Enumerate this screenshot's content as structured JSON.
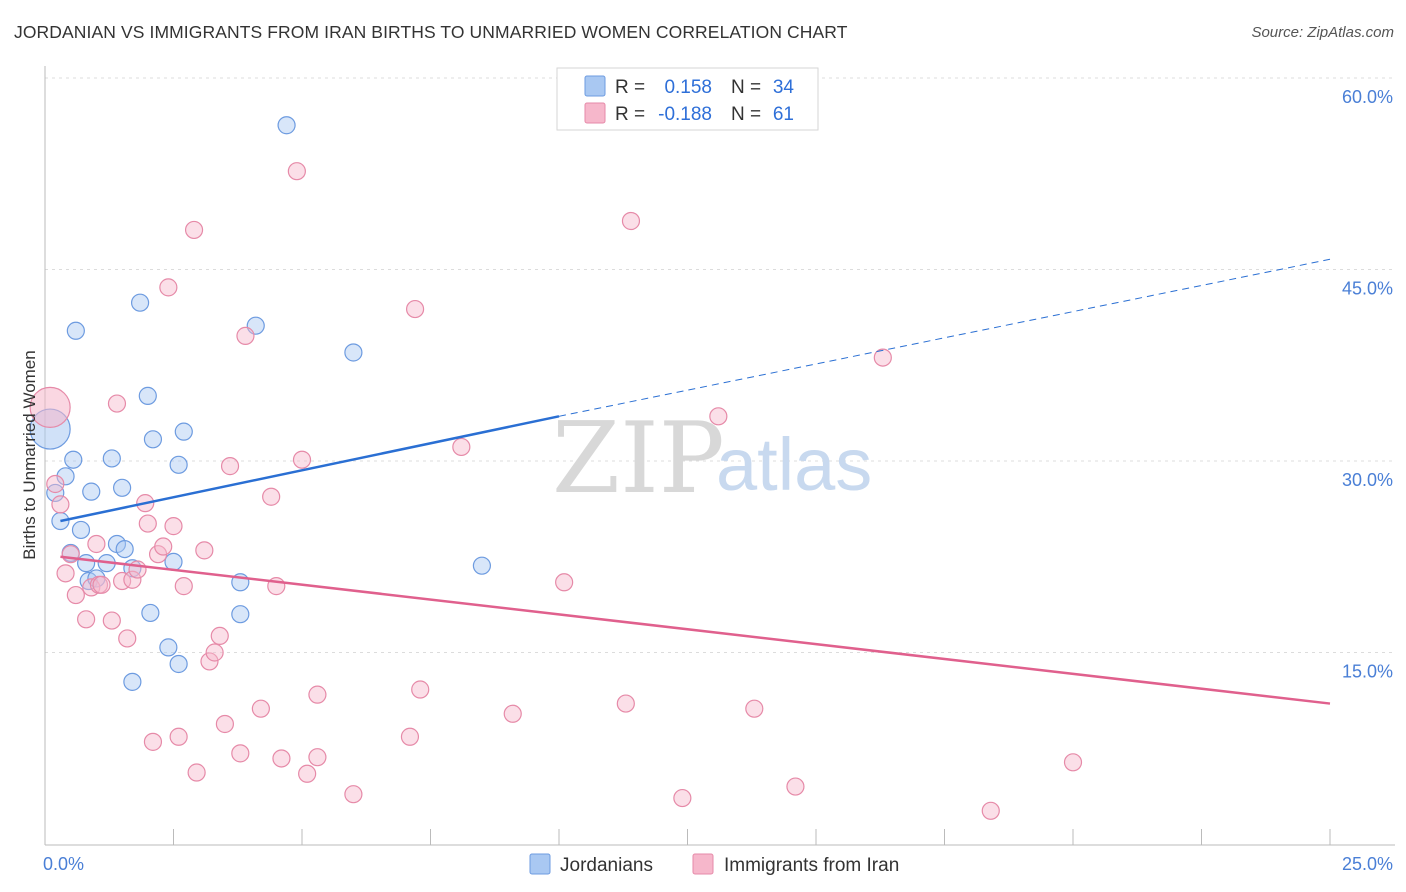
{
  "header": {
    "title": "JORDANIAN VS IMMIGRANTS FROM IRAN BIRTHS TO UNMARRIED WOMEN CORRELATION CHART",
    "source": "Source: ZipAtlas.com"
  },
  "watermark": {
    "zip": "ZIP",
    "atlas": "atlas"
  },
  "legend_top": {
    "rows": [
      {
        "r_label": "R =",
        "r_value": "0.158",
        "n_label": "N =",
        "n_value": "34",
        "color": "#a9c8f2"
      },
      {
        "r_label": "R =",
        "r_value": "-0.188",
        "n_label": "N =",
        "n_value": "61",
        "color": "#f6b7cb"
      }
    ]
  },
  "legend_bottom": {
    "items": [
      {
        "label": "Jordanians",
        "color": "#a9c8f2"
      },
      {
        "label": "Immigrants from Iran",
        "color": "#f6b7cb"
      }
    ]
  },
  "chart_data": {
    "type": "scatter",
    "title": "JORDANIAN VS IMMIGRANTS FROM IRAN BIRTHS TO UNMARRIED WOMEN CORRELATION CHART",
    "xlabel": "",
    "ylabel": "Births to Unmarried Women",
    "xlim": [
      0,
      25
    ],
    "ylim": [
      0,
      60
    ],
    "x_tick_labels": [
      "0.0%",
      "25.0%"
    ],
    "y_ticks": [
      15,
      30,
      45,
      60
    ],
    "y_tick_labels": [
      "15.0%",
      "30.0%",
      "45.0%",
      "60.0%"
    ],
    "grid": true,
    "legend_position": "top-center",
    "series": [
      {
        "name": "Jordanians",
        "color": "#a9c8f2",
        "stroke": "#6d9be0",
        "trend": {
          "x0": 0.3,
          "y0": 25.3,
          "x1": 10,
          "y1": 33.5,
          "dash_to_x": 25,
          "dash_to_y": 45.8,
          "color": "#2a6fd3"
        },
        "points": [
          [
            0.1,
            32.5
          ],
          [
            0.2,
            27.5
          ],
          [
            0.3,
            25.3
          ],
          [
            0.4,
            28.8
          ],
          [
            0.5,
            22.8
          ],
          [
            0.55,
            30.1
          ],
          [
            0.6,
            40.2
          ],
          [
            0.7,
            24.6
          ],
          [
            0.8,
            22.0
          ],
          [
            0.85,
            20.6
          ],
          [
            0.9,
            27.6
          ],
          [
            1.0,
            20.8
          ],
          [
            1.2,
            22.0
          ],
          [
            1.3,
            30.2
          ],
          [
            1.4,
            23.5
          ],
          [
            1.5,
            27.9
          ],
          [
            1.55,
            23.1
          ],
          [
            1.7,
            21.6
          ],
          [
            1.7,
            12.7
          ],
          [
            1.85,
            42.4
          ],
          [
            2.0,
            35.1
          ],
          [
            2.05,
            18.1
          ],
          [
            2.1,
            31.7
          ],
          [
            2.4,
            15.4
          ],
          [
            2.5,
            22.1
          ],
          [
            2.6,
            14.1
          ],
          [
            2.6,
            29.7
          ],
          [
            2.7,
            32.3
          ],
          [
            3.8,
            20.5
          ],
          [
            3.8,
            18.0
          ],
          [
            4.1,
            40.6
          ],
          [
            4.7,
            56.3
          ],
          [
            6.0,
            38.5
          ],
          [
            8.5,
            21.8
          ]
        ]
      },
      {
        "name": "Immigrants from Iran",
        "color": "#f6b7cb",
        "stroke": "#e68aa8",
        "trend": {
          "x0": 0.3,
          "y0": 22.5,
          "x1": 25,
          "y1": 11.0,
          "color": "#e0608d"
        },
        "points": [
          [
            0.1,
            34.2
          ],
          [
            0.2,
            28.2
          ],
          [
            0.3,
            26.6
          ],
          [
            0.4,
            21.2
          ],
          [
            0.5,
            22.7
          ],
          [
            0.6,
            19.5
          ],
          [
            0.8,
            17.6
          ],
          [
            0.9,
            20.1
          ],
          [
            1.0,
            23.5
          ],
          [
            1.05,
            20.3
          ],
          [
            1.1,
            20.3
          ],
          [
            1.3,
            17.5
          ],
          [
            1.4,
            34.5
          ],
          [
            1.5,
            20.6
          ],
          [
            1.6,
            16.1
          ],
          [
            1.7,
            20.7
          ],
          [
            1.8,
            21.5
          ],
          [
            1.95,
            26.7
          ],
          [
            2.0,
            25.1
          ],
          [
            2.1,
            8.0
          ],
          [
            2.2,
            22.7
          ],
          [
            2.3,
            23.3
          ],
          [
            2.4,
            43.6
          ],
          [
            2.5,
            24.9
          ],
          [
            2.6,
            8.4
          ],
          [
            2.7,
            20.2
          ],
          [
            2.9,
            48.1
          ],
          [
            2.95,
            5.6
          ],
          [
            3.1,
            23.0
          ],
          [
            3.2,
            14.3
          ],
          [
            3.3,
            15.0
          ],
          [
            3.4,
            16.3
          ],
          [
            3.5,
            9.4
          ],
          [
            3.6,
            29.6
          ],
          [
            3.8,
            7.1
          ],
          [
            3.9,
            39.8
          ],
          [
            4.2,
            10.6
          ],
          [
            4.4,
            27.2
          ],
          [
            4.5,
            20.2
          ],
          [
            4.6,
            6.7
          ],
          [
            4.9,
            52.7
          ],
          [
            5.0,
            30.1
          ],
          [
            5.1,
            5.5
          ],
          [
            5.3,
            11.7
          ],
          [
            5.3,
            6.8
          ],
          [
            6.0,
            3.9
          ],
          [
            7.1,
            8.4
          ],
          [
            7.2,
            41.9
          ],
          [
            7.3,
            12.1
          ],
          [
            8.1,
            31.1
          ],
          [
            9.1,
            10.2
          ],
          [
            10.1,
            20.5
          ],
          [
            11.3,
            11.0
          ],
          [
            11.4,
            48.8
          ],
          [
            12.4,
            3.6
          ],
          [
            13.1,
            33.5
          ],
          [
            13.8,
            10.6
          ],
          [
            14.6,
            4.5
          ],
          [
            16.3,
            38.1
          ],
          [
            18.4,
            2.6
          ],
          [
            20.0,
            6.4
          ]
        ]
      }
    ]
  }
}
